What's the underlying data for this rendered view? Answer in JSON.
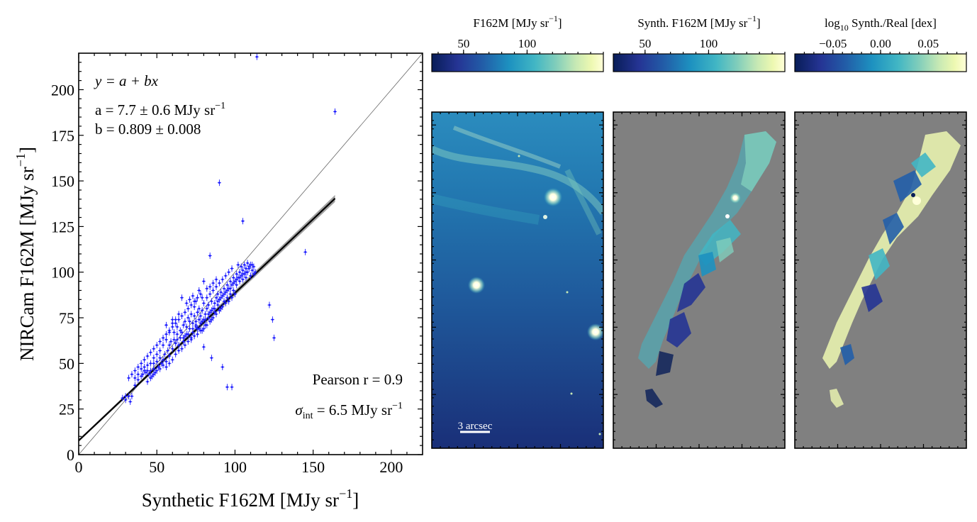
{
  "chart_data": [
    {
      "type": "scatter",
      "title": "",
      "xlabel": "Synthetic F162M [MJy sr",
      "xlabel_sup": "−1",
      "xlabel_close": "]",
      "ylabel": "NIRCam F162M [MJy sr",
      "ylabel_sup": "−1",
      "ylabel_close": "]",
      "xlim": [
        0,
        220
      ],
      "ylim": [
        0,
        220
      ],
      "xticks": [
        0,
        50,
        100,
        150,
        200
      ],
      "yticks": [
        0,
        25,
        50,
        75,
        100,
        125,
        150,
        175,
        200
      ],
      "xtick_labels": [
        "0",
        "50",
        "100",
        "150",
        "200"
      ],
      "ytick_labels": [
        "0",
        "25",
        "50",
        "75",
        "100",
        "125",
        "150",
        "175",
        "200"
      ],
      "fit": {
        "a": 7.7,
        "b": 0.809,
        "x_range": [
          0,
          164
        ]
      },
      "one_to_one_line": true,
      "cluster_points": [
        [
          28,
          31
        ],
        [
          30,
          30
        ],
        [
          32,
          32
        ],
        [
          33,
          29
        ],
        [
          34,
          32
        ],
        [
          30,
          32
        ],
        [
          36,
          38
        ],
        [
          38,
          41
        ],
        [
          40,
          43
        ],
        [
          41,
          44
        ],
        [
          42,
          46
        ],
        [
          43,
          45
        ],
        [
          44,
          46
        ],
        [
          45,
          44
        ],
        [
          46,
          46
        ],
        [
          47,
          43
        ],
        [
          48,
          47
        ],
        [
          48,
          50
        ],
        [
          49,
          45
        ],
        [
          50,
          51
        ],
        [
          51,
          48
        ],
        [
          52,
          53
        ],
        [
          53,
          50
        ],
        [
          54,
          52
        ],
        [
          55,
          55
        ],
        [
          56,
          51
        ],
        [
          57,
          57
        ],
        [
          58,
          54
        ],
        [
          58,
          60
        ],
        [
          59,
          62
        ],
        [
          60,
          58
        ],
        [
          61,
          63
        ],
        [
          61,
          67
        ],
        [
          62,
          61
        ],
        [
          63,
          66
        ],
        [
          63,
          70
        ],
        [
          64,
          60
        ],
        [
          65,
          64
        ],
        [
          65,
          68
        ],
        [
          66,
          67
        ],
        [
          67,
          62
        ],
        [
          67,
          71
        ],
        [
          68,
          65
        ],
        [
          68,
          73
        ],
        [
          69,
          70
        ],
        [
          70,
          66
        ],
        [
          70,
          75
        ],
        [
          71,
          69
        ],
        [
          71,
          73
        ],
        [
          72,
          77
        ],
        [
          72,
          64
        ],
        [
          73,
          72
        ],
        [
          73,
          67
        ],
        [
          74,
          76
        ],
        [
          74,
          81
        ],
        [
          75,
          70
        ],
        [
          75,
          73
        ],
        [
          76,
          78
        ],
        [
          76,
          69
        ],
        [
          77,
          74
        ],
        [
          77,
          80
        ],
        [
          78,
          72
        ],
        [
          78,
          76
        ],
        [
          79,
          79
        ],
        [
          79,
          68
        ],
        [
          80,
          74
        ],
        [
          80,
          83
        ],
        [
          81,
          77
        ],
        [
          81,
          71
        ],
        [
          82,
          80
        ],
        [
          82,
          86
        ],
        [
          83,
          75
        ],
        [
          83,
          82
        ],
        [
          84,
          78
        ],
        [
          84,
          88
        ],
        [
          85,
          84
        ],
        [
          85,
          74
        ],
        [
          86,
          80
        ],
        [
          86,
          90
        ],
        [
          87,
          83
        ],
        [
          87,
          78
        ],
        [
          88,
          86
        ],
        [
          88,
          92
        ],
        [
          89,
          82
        ],
        [
          89,
          88
        ],
        [
          90,
          85
        ],
        [
          90,
          94
        ],
        [
          91,
          80
        ],
        [
          91,
          89
        ],
        [
          92,
          87
        ],
        [
          92,
          96
        ],
        [
          93,
          84
        ],
        [
          93,
          91
        ],
        [
          94,
          89
        ],
        [
          94,
          98
        ],
        [
          95,
          86
        ],
        [
          95,
          93
        ],
        [
          96,
          91
        ],
        [
          96,
          100
        ],
        [
          97,
          88
        ],
        [
          97,
          95
        ],
        [
          98,
          93
        ],
        [
          98,
          102
        ],
        [
          99,
          90
        ],
        [
          99,
          97
        ],
        [
          100,
          95
        ],
        [
          100,
          88
        ],
        [
          101,
          99
        ],
        [
          101,
          93
        ],
        [
          102,
          97
        ],
        [
          102,
          104
        ],
        [
          103,
          95
        ],
        [
          103,
          100
        ],
        [
          104,
          98
        ],
        [
          104,
          103
        ],
        [
          105,
          101
        ],
        [
          105,
          96
        ],
        [
          106,
          99
        ],
        [
          106,
          104
        ],
        [
          107,
          102
        ],
        [
          107,
          97
        ],
        [
          108,
          100
        ],
        [
          108,
          105
        ],
        [
          109,
          103
        ],
        [
          110,
          98
        ],
        [
          110,
          104
        ],
        [
          111,
          101
        ],
        [
          112,
          99
        ],
        [
          112,
          103
        ],
        [
          113,
          100
        ],
        [
          66,
          86
        ],
        [
          69,
          83
        ],
        [
          71,
          85
        ],
        [
          73,
          87
        ],
        [
          75,
          84
        ],
        [
          77,
          90
        ],
        [
          79,
          86
        ],
        [
          60,
          72
        ],
        [
          62,
          74
        ],
        [
          64,
          77
        ],
        [
          58,
          67
        ],
        [
          56,
          63
        ],
        [
          54,
          60
        ],
        [
          52,
          57
        ],
        [
          50,
          55
        ],
        [
          48,
          53
        ],
        [
          46,
          50
        ],
        [
          44,
          49
        ],
        [
          42,
          48
        ],
        [
          40,
          47
        ],
        [
          38,
          44
        ],
        [
          36,
          42
        ],
        [
          44,
          40
        ],
        [
          46,
          42
        ],
        [
          48,
          44
        ],
        [
          50,
          46
        ],
        [
          52,
          47
        ],
        [
          54,
          49
        ],
        [
          56,
          48
        ],
        [
          58,
          50
        ],
        [
          60,
          52
        ],
        [
          62,
          55
        ],
        [
          64,
          57
        ],
        [
          66,
          58
        ],
        [
          68,
          60
        ],
        [
          70,
          62
        ],
        [
          72,
          63
        ],
        [
          74,
          65
        ],
        [
          76,
          66
        ],
        [
          78,
          68
        ],
        [
          80,
          69
        ],
        [
          82,
          71
        ],
        [
          84,
          73
        ],
        [
          86,
          75
        ],
        [
          88,
          77
        ],
        [
          90,
          79
        ],
        [
          92,
          81
        ],
        [
          94,
          83
        ],
        [
          96,
          84
        ],
        [
          98,
          86
        ],
        [
          84,
          92
        ],
        [
          86,
          94
        ],
        [
          88,
          96
        ],
        [
          80,
          95
        ],
        [
          82,
          91
        ],
        [
          78,
          88
        ],
        [
          76,
          86
        ],
        [
          74,
          84
        ],
        [
          72,
          82
        ],
        [
          70,
          80
        ],
        [
          68,
          78
        ],
        [
          66,
          76
        ],
        [
          64,
          74
        ],
        [
          62,
          72
        ],
        [
          60,
          70
        ],
        [
          58,
          68
        ],
        [
          56,
          66
        ],
        [
          54,
          64
        ],
        [
          52,
          62
        ],
        [
          50,
          60
        ],
        [
          48,
          58
        ],
        [
          46,
          56
        ],
        [
          44,
          54
        ],
        [
          42,
          52
        ],
        [
          40,
          50
        ],
        [
          38,
          48
        ],
        [
          36,
          46
        ],
        [
          34,
          44
        ],
        [
          32,
          42
        ],
        [
          56,
          71
        ],
        [
          60,
          74
        ],
        [
          63,
          63
        ],
        [
          67,
          64
        ],
        [
          69,
          66
        ],
        [
          73,
          69
        ],
        [
          75,
          71
        ],
        [
          77,
          69
        ],
        [
          79,
          73
        ],
        [
          81,
          74
        ],
        [
          83,
          77
        ],
        [
          85,
          79
        ],
        [
          87,
          80
        ],
        [
          89,
          84
        ],
        [
          91,
          86
        ],
        [
          93,
          88
        ],
        [
          95,
          90
        ],
        [
          97,
          91
        ],
        [
          99,
          94
        ],
        [
          101,
          96
        ],
        [
          103,
          97
        ],
        [
          105,
          99
        ],
        [
          107,
          100
        ],
        [
          109,
          102
        ],
        [
          111,
          104
        ]
      ],
      "outliers": [
        [
          114,
          218
        ],
        [
          164,
          188
        ],
        [
          90,
          149
        ],
        [
          105,
          128
        ],
        [
          84,
          109
        ],
        [
          145,
          111
        ],
        [
          122,
          82
        ],
        [
          124,
          74
        ],
        [
          125,
          64
        ],
        [
          92,
          48
        ],
        [
          95,
          37
        ],
        [
          98,
          37
        ],
        [
          85,
          53
        ],
        [
          80,
          59
        ]
      ],
      "annotations": {
        "equation": "y = a + bx",
        "a_line": "a = 7.7 ± 0.6 MJy sr",
        "a_sup": "−1",
        "b_line": "b = 0.809 ± 0.008",
        "pearson": "Pearson r = 0.9",
        "sigma_sym": "σ",
        "sigma_sub": "int",
        "sigma_text": " = 6.5 MJy sr",
        "sigma_sup": "−1"
      }
    },
    {
      "type": "heatmap",
      "title": "F162M [MJy sr",
      "title_sup": "−1",
      "title_close": "]",
      "colormap": "YlGnBu_r",
      "colorbar_range": [
        25,
        160
      ],
      "colorbar_ticks": [
        50,
        100
      ],
      "colorbar_tick_labels": [
        "50",
        "100"
      ],
      "scalebar_label": "3 arcsec"
    },
    {
      "type": "heatmap",
      "title": "Synth. F162M [MJy sr",
      "title_sup": "−1",
      "title_close": "]",
      "colormap": "YlGnBu_r",
      "colorbar_range": [
        25,
        160
      ],
      "colorbar_ticks": [
        50,
        100
      ],
      "colorbar_tick_labels": [
        "50",
        "100"
      ],
      "background_color": "#808080"
    },
    {
      "type": "heatmap",
      "title": "log",
      "title_sub": "10",
      "title_rest": " Synth./Real [dex]",
      "colormap": "YlGnBu_r",
      "colorbar_range": [
        -0.09,
        0.09
      ],
      "colorbar_ticks": [
        -0.05,
        0.0,
        0.05
      ],
      "colorbar_tick_labels": [
        "−0.05",
        "0.00",
        "0.05"
      ],
      "background_color": "#808080"
    }
  ],
  "colors": {
    "points": "#1a1aff",
    "fit_line": "#000000",
    "fit_band": "#808080",
    "one_to_one": "#666666",
    "masked": "#808080",
    "cmap_stops": [
      "#081d58",
      "#253494",
      "#225ea8",
      "#1d91c0",
      "#41b6c4",
      "#7fcdbb",
      "#c7e9b4",
      "#edf8b1",
      "#ffffd9"
    ]
  }
}
